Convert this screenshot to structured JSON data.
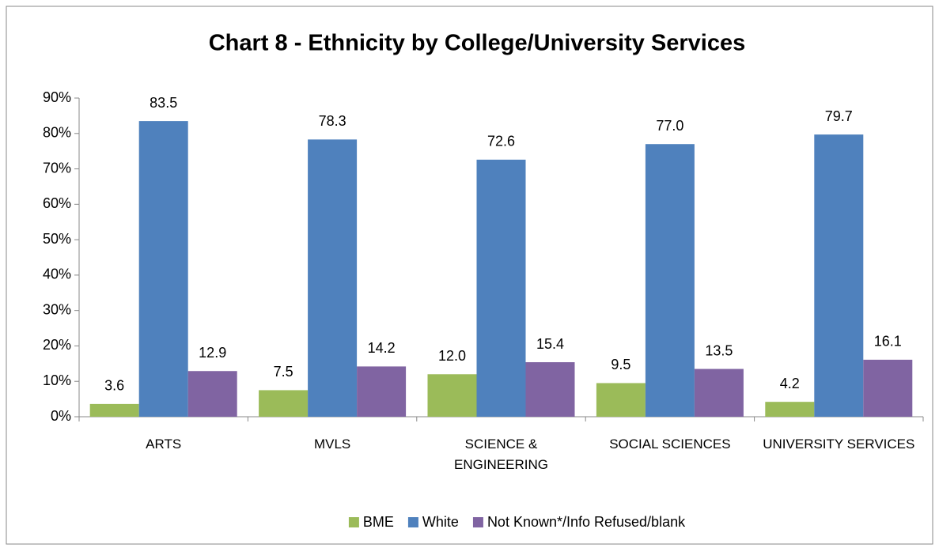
{
  "chart_data": {
    "type": "bar",
    "title": "Chart 8 - Ethnicity by College/University Services",
    "categories": [
      "ARTS",
      "MVLS",
      "SCIENCE & ENGINEERING",
      "SOCIAL SCIENCES",
      "UNIVERSITY SERVICES"
    ],
    "series": [
      {
        "name": "BME",
        "color": "#9bbb59",
        "values": [
          3.6,
          7.5,
          12.0,
          9.5,
          4.2
        ],
        "value_labels": [
          "3.6",
          "7.5",
          "12.0",
          "9.5",
          "4.2"
        ]
      },
      {
        "name": "White",
        "color": "#4f81bd",
        "values": [
          83.5,
          78.3,
          72.6,
          77.0,
          79.7
        ],
        "value_labels": [
          "83.5",
          "78.3",
          "72.6",
          "77.0",
          "79.7"
        ]
      },
      {
        "name": "Not Known*/Info Refused/blank",
        "color": "#8064a2",
        "values": [
          12.9,
          14.2,
          15.4,
          13.5,
          16.1
        ],
        "value_labels": [
          "12.9",
          "14.2",
          "15.4",
          "13.5",
          "16.1"
        ]
      }
    ],
    "ylim": [
      0,
      90
    ],
    "yticks": [
      {
        "value": 0,
        "label": "0%"
      },
      {
        "value": 10,
        "label": "10%"
      },
      {
        "value": 20,
        "label": "20%"
      },
      {
        "value": 30,
        "label": "30%"
      },
      {
        "value": 40,
        "label": "40%"
      },
      {
        "value": 50,
        "label": "50%"
      },
      {
        "value": 60,
        "label": "60%"
      },
      {
        "value": 70,
        "label": "70%"
      },
      {
        "value": 80,
        "label": "80%"
      },
      {
        "value": 90,
        "label": "90%"
      }
    ],
    "grid": false,
    "legend": "bottom"
  }
}
